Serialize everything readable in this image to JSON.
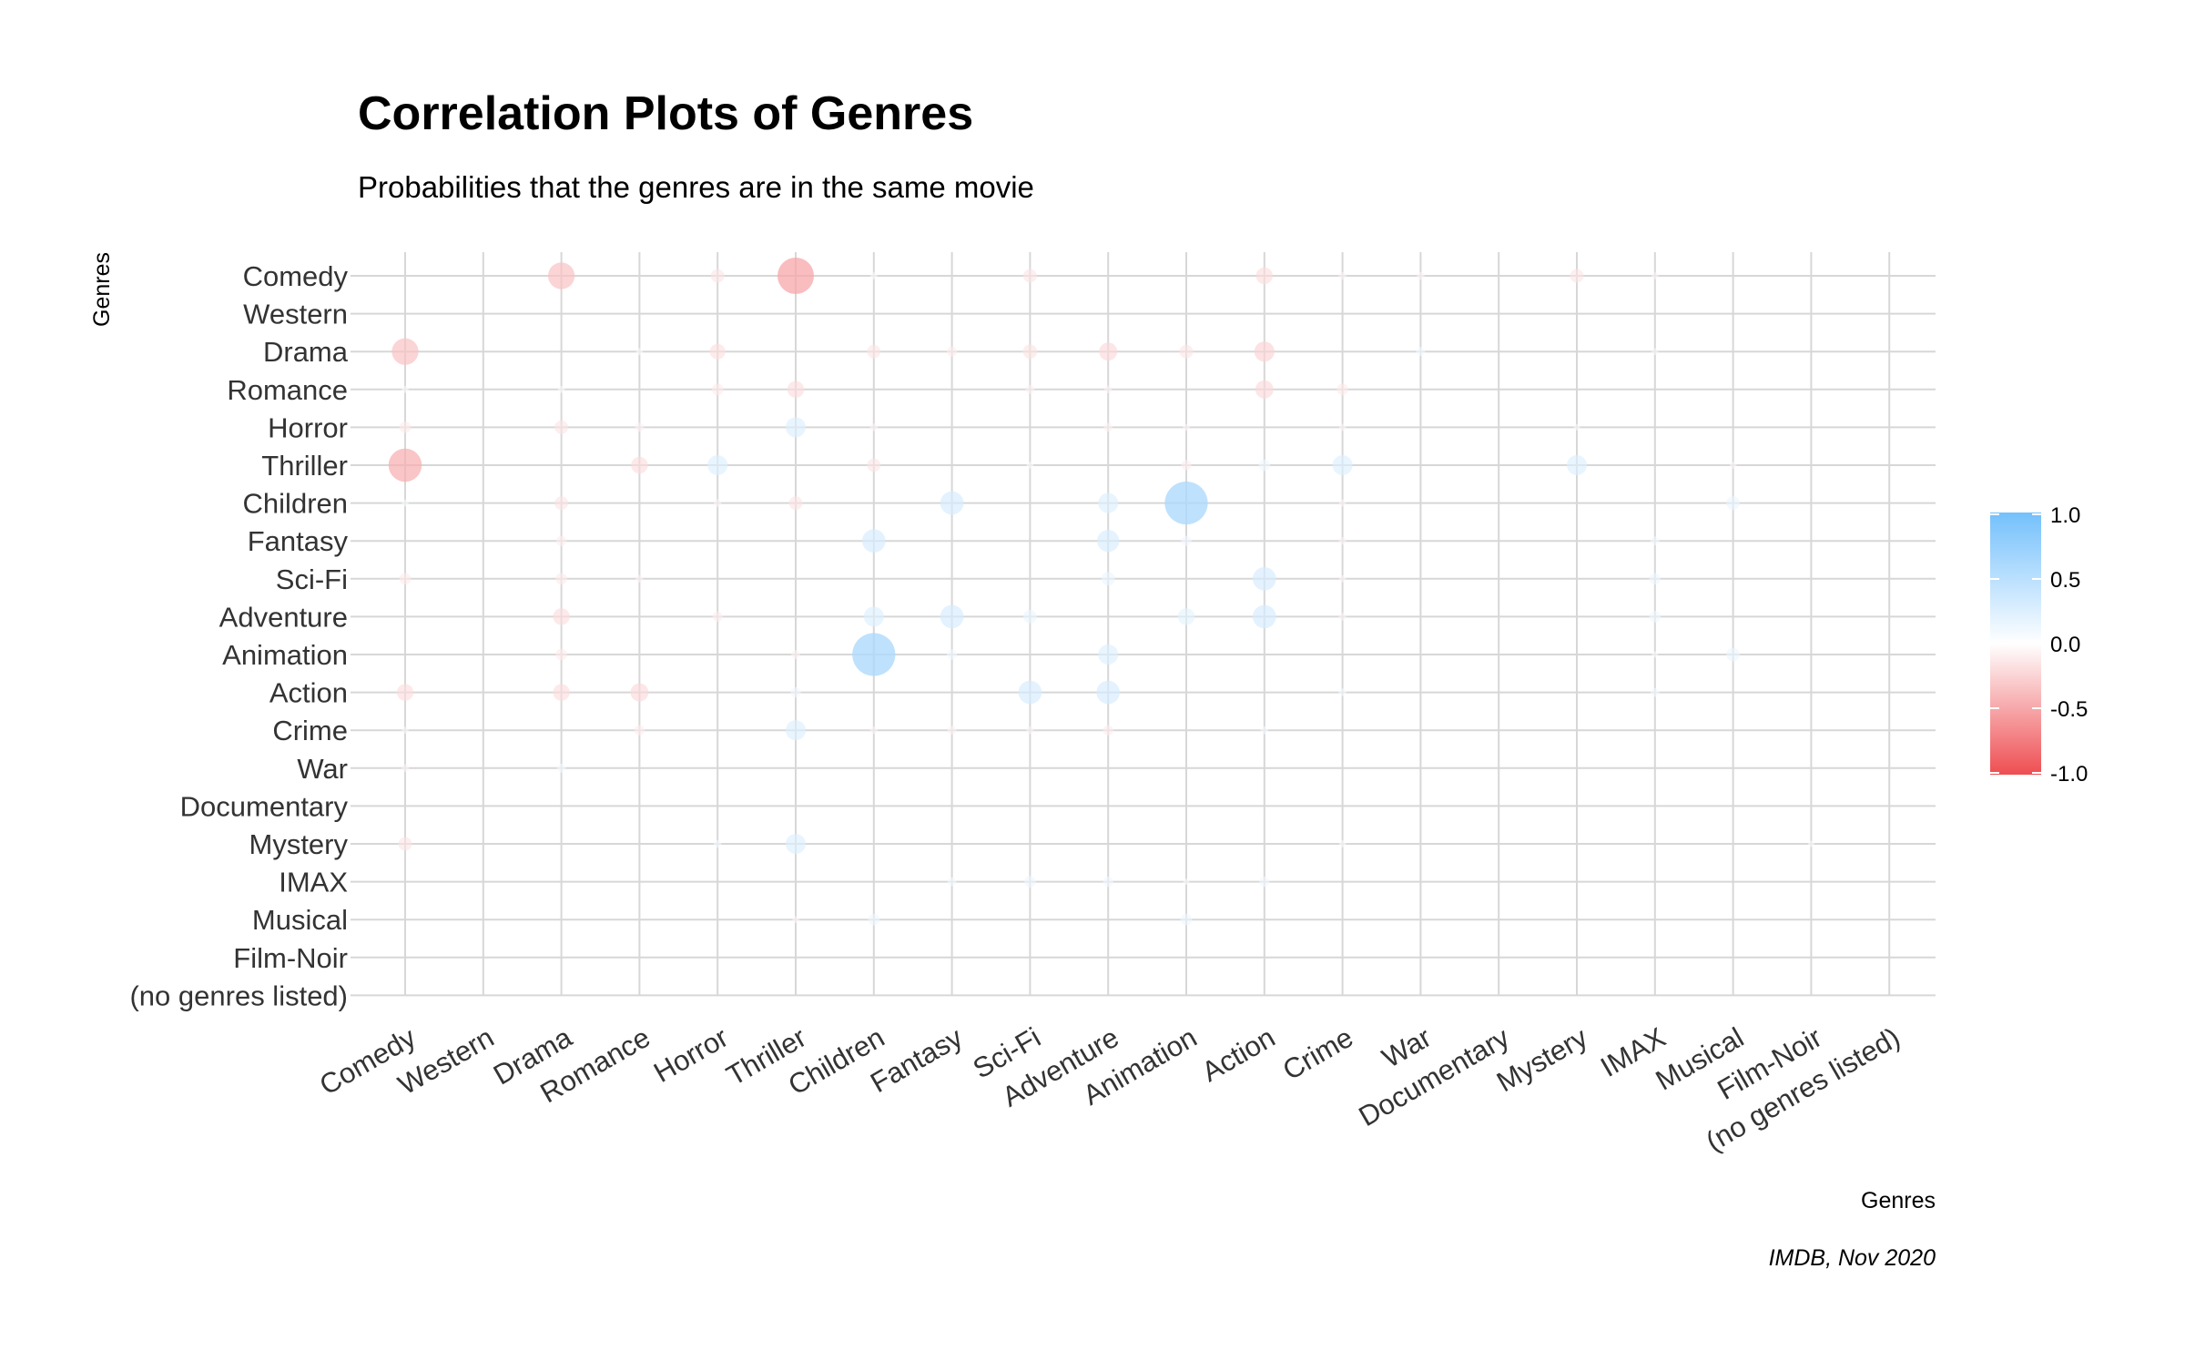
{
  "chart_data": {
    "type": "scatter",
    "subtype": "correlation-bubble-matrix",
    "title": "Correlation Plots of Genres",
    "subtitle": "Probabilities that the genres are in the same movie",
    "xlabel": "Genres",
    "ylabel": "Genres",
    "caption": "IMDB, Nov 2020",
    "categories": [
      "Comedy",
      "Western",
      "Drama",
      "Romance",
      "Horror",
      "Thriller",
      "Children",
      "Fantasy",
      "Sci-Fi",
      "Adventure",
      "Animation",
      "Action",
      "Crime",
      "War",
      "Documentary",
      "Mystery",
      "IMAX",
      "Musical",
      "Film-Noir",
      "(no genres listed)"
    ],
    "legend": {
      "title": "",
      "position": "right",
      "ticks": [
        "1.0",
        "0.5",
        "0.0",
        "-0.5",
        "-1.0"
      ],
      "range": [
        -1,
        1
      ],
      "colors": {
        "high": "#74c0fc",
        "mid": "#ffffff",
        "low": "#ee4e52"
      }
    },
    "points": [
      {
        "x": "Drama",
        "y": "Comedy",
        "value": -0.35
      },
      {
        "x": "Horror",
        "y": "Comedy",
        "value": -0.15
      },
      {
        "x": "Thriller",
        "y": "Comedy",
        "value": -0.5
      },
      {
        "x": "Children",
        "y": "Comedy",
        "value": 0.05
      },
      {
        "x": "Sci-Fi",
        "y": "Comedy",
        "value": -0.15
      },
      {
        "x": "Action",
        "y": "Comedy",
        "value": -0.2
      },
      {
        "x": "Crime",
        "y": "Comedy",
        "value": -0.06
      },
      {
        "x": "War",
        "y": "Comedy",
        "value": -0.06
      },
      {
        "x": "Mystery",
        "y": "Comedy",
        "value": -0.15
      },
      {
        "x": "IMAX",
        "y": "Comedy",
        "value": -0.05
      },
      {
        "x": "Comedy",
        "y": "Drama",
        "value": -0.35
      },
      {
        "x": "Romance",
        "y": "Drama",
        "value": 0.05
      },
      {
        "x": "Horror",
        "y": "Drama",
        "value": -0.18
      },
      {
        "x": "Children",
        "y": "Drama",
        "value": -0.15
      },
      {
        "x": "Fantasy",
        "y": "Drama",
        "value": -0.1
      },
      {
        "x": "Sci-Fi",
        "y": "Drama",
        "value": -0.16
      },
      {
        "x": "Adventure",
        "y": "Drama",
        "value": -0.22
      },
      {
        "x": "Animation",
        "y": "Drama",
        "value": -0.15
      },
      {
        "x": "Action",
        "y": "Drama",
        "value": -0.25
      },
      {
        "x": "War",
        "y": "Drama",
        "value": 0.08
      },
      {
        "x": "IMAX",
        "y": "Drama",
        "value": -0.05
      },
      {
        "x": "Comedy",
        "y": "Romance",
        "value": 0.05
      },
      {
        "x": "Drama",
        "y": "Romance",
        "value": 0.05
      },
      {
        "x": "Horror",
        "y": "Romance",
        "value": -0.12
      },
      {
        "x": "Thriller",
        "y": "Romance",
        "value": -0.2
      },
      {
        "x": "Sci-Fi",
        "y": "Romance",
        "value": -0.08
      },
      {
        "x": "Adventure",
        "y": "Romance",
        "value": -0.06
      },
      {
        "x": "Action",
        "y": "Romance",
        "value": -0.22
      },
      {
        "x": "Crime",
        "y": "Romance",
        "value": -0.12
      },
      {
        "x": "Comedy",
        "y": "Horror",
        "value": -0.12
      },
      {
        "x": "Drama",
        "y": "Horror",
        "value": -0.15
      },
      {
        "x": "Romance",
        "y": "Horror",
        "value": -0.08
      },
      {
        "x": "Thriller",
        "y": "Horror",
        "value": 0.25
      },
      {
        "x": "Children",
        "y": "Horror",
        "value": -0.06
      },
      {
        "x": "Adventure",
        "y": "Horror",
        "value": -0.08
      },
      {
        "x": "Animation",
        "y": "Horror",
        "value": -0.05
      },
      {
        "x": "Crime",
        "y": "Horror",
        "value": -0.05
      },
      {
        "x": "Mystery",
        "y": "Horror",
        "value": -0.04
      },
      {
        "x": "Comedy",
        "y": "Thriller",
        "value": -0.45
      },
      {
        "x": "Romance",
        "y": "Thriller",
        "value": -0.2
      },
      {
        "x": "Horror",
        "y": "Thriller",
        "value": 0.25
      },
      {
        "x": "Children",
        "y": "Thriller",
        "value": -0.15
      },
      {
        "x": "Sci-Fi",
        "y": "Thriller",
        "value": 0.05
      },
      {
        "x": "Animation",
        "y": "Thriller",
        "value": -0.1
      },
      {
        "x": "Action",
        "y": "Thriller",
        "value": 0.12
      },
      {
        "x": "Crime",
        "y": "Thriller",
        "value": 0.25
      },
      {
        "x": "Mystery",
        "y": "Thriller",
        "value": 0.25
      },
      {
        "x": "Musical",
        "y": "Thriller",
        "value": -0.05
      },
      {
        "x": "Comedy",
        "y": "Children",
        "value": 0.05
      },
      {
        "x": "Drama",
        "y": "Children",
        "value": -0.15
      },
      {
        "x": "Horror",
        "y": "Children",
        "value": -0.06
      },
      {
        "x": "Thriller",
        "y": "Children",
        "value": -0.15
      },
      {
        "x": "Fantasy",
        "y": "Children",
        "value": 0.3
      },
      {
        "x": "Adventure",
        "y": "Children",
        "value": 0.25
      },
      {
        "x": "Animation",
        "y": "Children",
        "value": 0.6
      },
      {
        "x": "Crime",
        "y": "Children",
        "value": -0.05
      },
      {
        "x": "Musical",
        "y": "Children",
        "value": 0.15
      },
      {
        "x": "Drama",
        "y": "Fantasy",
        "value": -0.1
      },
      {
        "x": "Children",
        "y": "Fantasy",
        "value": 0.3
      },
      {
        "x": "Adventure",
        "y": "Fantasy",
        "value": 0.28
      },
      {
        "x": "Animation",
        "y": "Fantasy",
        "value": 0.1
      },
      {
        "x": "Crime",
        "y": "Fantasy",
        "value": -0.06
      },
      {
        "x": "IMAX",
        "y": "Fantasy",
        "value": 0.08
      },
      {
        "x": "Comedy",
        "y": "Sci-Fi",
        "value": -0.12
      },
      {
        "x": "Drama",
        "y": "Sci-Fi",
        "value": -0.12
      },
      {
        "x": "Romance",
        "y": "Sci-Fi",
        "value": -0.06
      },
      {
        "x": "Adventure",
        "y": "Sci-Fi",
        "value": 0.15
      },
      {
        "x": "Action",
        "y": "Sci-Fi",
        "value": 0.3
      },
      {
        "x": "Crime",
        "y": "Sci-Fi",
        "value": -0.05
      },
      {
        "x": "IMAX",
        "y": "Sci-Fi",
        "value": 0.12
      },
      {
        "x": "Drama",
        "y": "Adventure",
        "value": -0.2
      },
      {
        "x": "Horror",
        "y": "Adventure",
        "value": -0.1
      },
      {
        "x": "Children",
        "y": "Adventure",
        "value": 0.25
      },
      {
        "x": "Fantasy",
        "y": "Adventure",
        "value": 0.3
      },
      {
        "x": "Sci-Fi",
        "y": "Adventure",
        "value": 0.15
      },
      {
        "x": "Animation",
        "y": "Adventure",
        "value": 0.2
      },
      {
        "x": "Action",
        "y": "Adventure",
        "value": 0.3
      },
      {
        "x": "Crime",
        "y": "Adventure",
        "value": -0.06
      },
      {
        "x": "IMAX",
        "y": "Adventure",
        "value": 0.12
      },
      {
        "x": "Drama",
        "y": "Animation",
        "value": -0.12
      },
      {
        "x": "Thriller",
        "y": "Animation",
        "value": -0.08
      },
      {
        "x": "Children",
        "y": "Animation",
        "value": 0.6
      },
      {
        "x": "Fantasy",
        "y": "Animation",
        "value": 0.1
      },
      {
        "x": "Adventure",
        "y": "Animation",
        "value": 0.25
      },
      {
        "x": "IMAX",
        "y": "Animation",
        "value": 0.04
      },
      {
        "x": "Musical",
        "y": "Animation",
        "value": 0.15
      },
      {
        "x": "Comedy",
        "y": "Action",
        "value": -0.2
      },
      {
        "x": "Drama",
        "y": "Action",
        "value": -0.2
      },
      {
        "x": "Romance",
        "y": "Action",
        "value": -0.22
      },
      {
        "x": "Thriller",
        "y": "Action",
        "value": 0.1
      },
      {
        "x": "Sci-Fi",
        "y": "Action",
        "value": 0.3
      },
      {
        "x": "Adventure",
        "y": "Action",
        "value": 0.3
      },
      {
        "x": "Crime",
        "y": "Action",
        "value": 0.06
      },
      {
        "x": "IMAX",
        "y": "Action",
        "value": 0.08
      },
      {
        "x": "Comedy",
        "y": "Crime",
        "value": -0.05
      },
      {
        "x": "Romance",
        "y": "Crime",
        "value": -0.1
      },
      {
        "x": "Thriller",
        "y": "Crime",
        "value": 0.25
      },
      {
        "x": "Children",
        "y": "Crime",
        "value": -0.06
      },
      {
        "x": "Fantasy",
        "y": "Crime",
        "value": -0.08
      },
      {
        "x": "Sci-Fi",
        "y": "Crime",
        "value": -0.06
      },
      {
        "x": "Adventure",
        "y": "Crime",
        "value": -0.1
      },
      {
        "x": "Action",
        "y": "Crime",
        "value": 0.06
      },
      {
        "x": "Comedy",
        "y": "War",
        "value": -0.06
      },
      {
        "x": "Drama",
        "y": "War",
        "value": 0.08
      },
      {
        "x": "Comedy",
        "y": "Mystery",
        "value": -0.15
      },
      {
        "x": "Horror",
        "y": "Mystery",
        "value": 0.06
      },
      {
        "x": "Thriller",
        "y": "Mystery",
        "value": 0.25
      },
      {
        "x": "Crime",
        "y": "Mystery",
        "value": 0.05
      },
      {
        "x": "Film-Noir",
        "y": "Mystery",
        "value": 0.04
      },
      {
        "x": "Fantasy",
        "y": "IMAX",
        "value": 0.08
      },
      {
        "x": "Sci-Fi",
        "y": "IMAX",
        "value": 0.12
      },
      {
        "x": "Adventure",
        "y": "IMAX",
        "value": 0.1
      },
      {
        "x": "Animation",
        "y": "IMAX",
        "value": 0.04
      },
      {
        "x": "Action",
        "y": "IMAX",
        "value": 0.1
      },
      {
        "x": "Thriller",
        "y": "Musical",
        "value": -0.05
      },
      {
        "x": "Children",
        "y": "Musical",
        "value": 0.12
      },
      {
        "x": "Animation",
        "y": "Musical",
        "value": 0.12
      }
    ]
  }
}
